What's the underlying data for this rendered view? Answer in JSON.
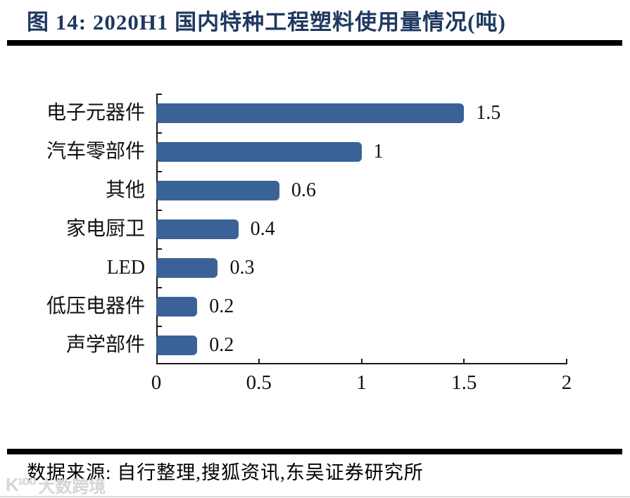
{
  "figure": {
    "title": "图 14: 2020H1 国内特种工程塑料使用量情况(吨)",
    "source_text": "数据来源: 自行整理,搜狐资讯,东吴证券研究所",
    "watermark": {
      "logo_text": "K¹⁰⁰",
      "text": "大数跨境"
    }
  },
  "colors": {
    "bar": "#3A6296",
    "title": "#1E3860",
    "rule": "#000000",
    "axis": "#1a1a1a",
    "watermark": "#D5D5D5"
  },
  "chart_data": {
    "type": "bar",
    "orientation": "horizontal",
    "title": "2020H1 国内特种工程塑料使用量情况(吨)",
    "categories": [
      "电子元器件",
      "汽车零部件",
      "其他",
      "家电厨卫",
      "LED",
      "低压电器件",
      "声学部件"
    ],
    "values": [
      1.5,
      1,
      0.6,
      0.4,
      0.3,
      0.2,
      0.2
    ],
    "value_labels": [
      "1.5",
      "1",
      "0.6",
      "0.4",
      "0.3",
      "0.2",
      "0.2"
    ],
    "xlabel": "",
    "ylabel": "",
    "xlim": [
      0,
      2
    ],
    "x_ticks": [
      "0",
      "0.5",
      "1",
      "1.5",
      "2"
    ],
    "grid": false,
    "legend": null,
    "bar_color": "#3A6296"
  }
}
